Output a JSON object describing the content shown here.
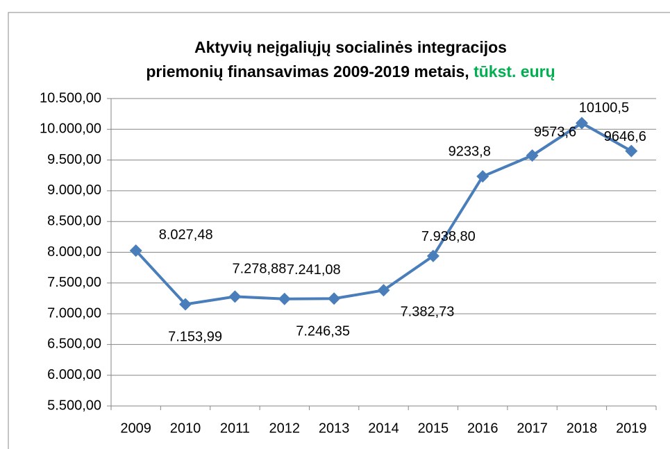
{
  "chart_data": {
    "type": "line",
    "title": [
      "Aktyvių neįgaliųjų socialinės integracijos",
      "priemonių finansavimas 2009-2019 metais,"
    ],
    "title_unit": "tūkst. eurų",
    "title_unit_color": "#00b050",
    "categories": [
      "2009",
      "2010",
      "2011",
      "2012",
      "2013",
      "2014",
      "2015",
      "2016",
      "2017",
      "2018",
      "2019"
    ],
    "values": [
      8027.48,
      7153.99,
      7278.88,
      7241.08,
      7246.35,
      7382.73,
      7938.8,
      9233.8,
      9573.6,
      10100.5,
      9646.6
    ],
    "value_labels": [
      "8.027,48",
      "7.153,99",
      "7.278,88",
      "7.241,08",
      "7.246,35",
      "7.382,73",
      "7.938,80",
      "9233,8",
      "9573,6",
      "10100,5",
      "9646,6"
    ],
    "color": "#4a7ebb",
    "ylim": [
      5500,
      10500
    ],
    "yticks": [
      {
        "value": 5500,
        "label": "5.500,00"
      },
      {
        "value": 6000,
        "label": "6.000,00"
      },
      {
        "value": 6500,
        "label": "6.500,00"
      },
      {
        "value": 7000,
        "label": "7.000,00"
      },
      {
        "value": 7500,
        "label": "7.500,00"
      },
      {
        "value": 8000,
        "label": "8.000,00"
      },
      {
        "value": 8500,
        "label": "8.500,00"
      },
      {
        "value": 9000,
        "label": "9.000,00"
      },
      {
        "value": 9500,
        "label": "9.500,00"
      },
      {
        "value": 10000,
        "label": "10.000,00"
      },
      {
        "value": 10500,
        "label": "10.500,00"
      }
    ],
    "grid": true
  }
}
